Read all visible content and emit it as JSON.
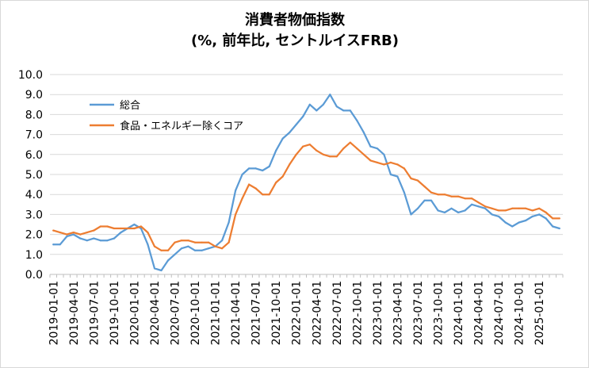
{
  "chart_data": {
    "type": "line",
    "title": "消費者物価指数",
    "subtitle": "(%, 前年比, セントルイスFRB)",
    "xlabel": "",
    "ylabel": "",
    "ylim": [
      0,
      10
    ],
    "y_ticks": [
      "0.0",
      "1.0",
      "2.0",
      "3.0",
      "4.0",
      "5.0",
      "6.0",
      "7.0",
      "8.0",
      "9.0",
      "10.0"
    ],
    "x_tick_labels": [
      "2019-01-01",
      "2019-04-01",
      "2019-07-01",
      "2019-10-01",
      "2020-01-01",
      "2020-04-01",
      "2020-07-01",
      "2020-10-01",
      "2021-01-01",
      "2021-04-01",
      "2021-07-01",
      "2021-10-01",
      "2022-01-01",
      "2022-04-01",
      "2022-07-01",
      "2022-10-01",
      "2023-01-01",
      "2023-04-01",
      "2023-07-01",
      "2023-10-01",
      "2024-01-01",
      "2024-04-01",
      "2024-07-01",
      "2024-10-01",
      "2025-01-01"
    ],
    "grid": "horizontal",
    "legend": "upper-left inside plot",
    "x": [
      "2019-01",
      "2019-02",
      "2019-03",
      "2019-04",
      "2019-05",
      "2019-06",
      "2019-07",
      "2019-08",
      "2019-09",
      "2019-10",
      "2019-11",
      "2019-12",
      "2020-01",
      "2020-02",
      "2020-03",
      "2020-04",
      "2020-05",
      "2020-06",
      "2020-07",
      "2020-08",
      "2020-09",
      "2020-10",
      "2020-11",
      "2020-12",
      "2021-01",
      "2021-02",
      "2021-03",
      "2021-04",
      "2021-05",
      "2021-06",
      "2021-07",
      "2021-08",
      "2021-09",
      "2021-10",
      "2021-11",
      "2021-12",
      "2022-01",
      "2022-02",
      "2022-03",
      "2022-04",
      "2022-05",
      "2022-06",
      "2022-07",
      "2022-08",
      "2022-09",
      "2022-10",
      "2022-11",
      "2022-12",
      "2023-01",
      "2023-02",
      "2023-03",
      "2023-04",
      "2023-05",
      "2023-06",
      "2023-07",
      "2023-08",
      "2023-09",
      "2023-10",
      "2023-11",
      "2023-12",
      "2024-01",
      "2024-02",
      "2024-03",
      "2024-04",
      "2024-05",
      "2024-06",
      "2024-07",
      "2024-08",
      "2024-09",
      "2024-10",
      "2024-11",
      "2024-12",
      "2025-01",
      "2025-02",
      "2025-03",
      "2025-04"
    ],
    "series": [
      {
        "name": "総合",
        "color": "#5b9bd5",
        "values": [
          1.5,
          1.5,
          1.9,
          2.0,
          1.8,
          1.7,
          1.8,
          1.7,
          1.7,
          1.8,
          2.1,
          2.3,
          2.5,
          2.3,
          1.5,
          0.3,
          0.2,
          0.7,
          1.0,
          1.3,
          1.4,
          1.2,
          1.2,
          1.3,
          1.4,
          1.7,
          2.6,
          4.2,
          5.0,
          5.3,
          5.3,
          5.2,
          5.4,
          6.2,
          6.8,
          7.1,
          7.5,
          7.9,
          8.5,
          8.2,
          8.5,
          9.0,
          8.4,
          8.2,
          8.2,
          7.7,
          7.1,
          6.4,
          6.3,
          6.0,
          5.0,
          4.9,
          4.1,
          3.0,
          3.3,
          3.7,
          3.7,
          3.2,
          3.1,
          3.3,
          3.1,
          3.2,
          3.5,
          3.4,
          3.3,
          3.0,
          2.9,
          2.6,
          2.4,
          2.6,
          2.7,
          2.9,
          3.0,
          2.8,
          2.4,
          2.3
        ]
      },
      {
        "name": "食品・エネルギー除くコア",
        "color": "#ed7d31",
        "values": [
          2.2,
          2.1,
          2.0,
          2.1,
          2.0,
          2.1,
          2.2,
          2.4,
          2.4,
          2.3,
          2.3,
          2.3,
          2.3,
          2.4,
          2.1,
          1.4,
          1.2,
          1.2,
          1.6,
          1.7,
          1.7,
          1.6,
          1.6,
          1.6,
          1.4,
          1.3,
          1.6,
          3.0,
          3.8,
          4.5,
          4.3,
          4.0,
          4.0,
          4.6,
          4.9,
          5.5,
          6.0,
          6.4,
          6.5,
          6.2,
          6.0,
          5.9,
          5.9,
          6.3,
          6.6,
          6.3,
          6.0,
          5.7,
          5.6,
          5.5,
          5.6,
          5.5,
          5.3,
          4.8,
          4.7,
          4.4,
          4.1,
          4.0,
          4.0,
          3.9,
          3.9,
          3.8,
          3.8,
          3.6,
          3.4,
          3.3,
          3.2,
          3.2,
          3.3,
          3.3,
          3.3,
          3.2,
          3.3,
          3.1,
          2.8,
          2.8
        ]
      }
    ]
  }
}
